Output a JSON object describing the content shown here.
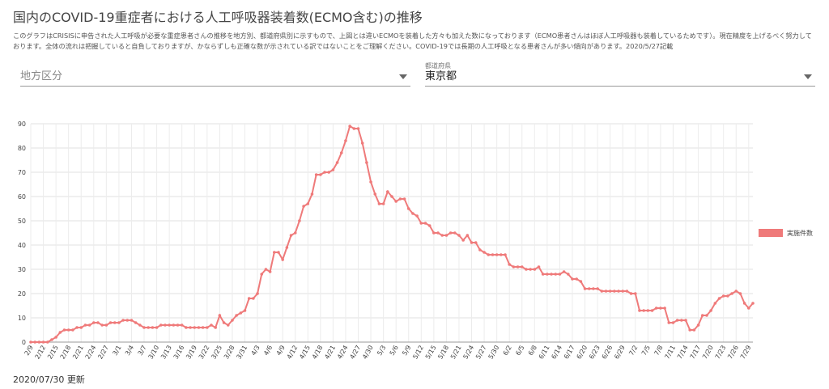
{
  "header": {
    "title": "国内のCOVID-19重症者における人工呼吸器装着数(ECMO含む)の推移",
    "description": "このグラフはCRISISに申告された人工呼吸が必要な重症患者さんの推移を地方別、都道府県別に示すもので、上図とは違いECMOを装着した方々も加えた数になっております（ECMO患者さんはほぼ人工呼吸器も装着しているためです）。現在精度を上げるべく努力しております。全体の流れは把握していると自負しておりますが、かならずしも正確な数が示されている訳ではないことをご理解ください。COVID-19では長期の人工呼吸となる患者さんが多い傾向があります。2020/5/27記載"
  },
  "filters": {
    "region_placeholder": "地方区分",
    "prefecture_label": "都道府県",
    "prefecture_value": "東京都"
  },
  "footer": {
    "updated": "2020/07/30 更新"
  },
  "chart_data": {
    "type": "line",
    "categories": [
      "2/9",
      null,
      null,
      "2/12",
      null,
      null,
      "2/15",
      null,
      null,
      "2/18",
      null,
      null,
      "2/21",
      null,
      null,
      "2/24",
      null,
      null,
      "2/27",
      null,
      null,
      "3/1",
      null,
      null,
      "3/4",
      null,
      null,
      "3/7",
      null,
      null,
      "3/10",
      null,
      null,
      "3/13",
      null,
      null,
      "3/16",
      null,
      null,
      "3/19",
      null,
      null,
      "3/22",
      null,
      null,
      "3/25",
      null,
      null,
      "3/28",
      null,
      null,
      "3/31",
      null,
      null,
      "4/3",
      null,
      null,
      "4/6",
      null,
      null,
      "4/9",
      null,
      null,
      "4/12",
      null,
      null,
      "4/15",
      null,
      null,
      "4/18",
      null,
      null,
      "4/21",
      null,
      null,
      "4/24",
      null,
      null,
      "4/27",
      null,
      null,
      "4/30",
      null,
      null,
      "5/3",
      null,
      null,
      "5/6",
      null,
      null,
      "5/9",
      null,
      null,
      "5/12",
      null,
      null,
      "5/15",
      null,
      null,
      "5/18",
      null,
      null,
      "5/21",
      null,
      null,
      "5/24",
      null,
      null,
      "5/27",
      null,
      null,
      "5/30",
      null,
      null,
      "6/2",
      null,
      null,
      "6/5",
      null,
      null,
      "6/8",
      null,
      null,
      "6/11",
      null,
      null,
      "6/14",
      null,
      null,
      "6/17",
      null,
      null,
      "6/20",
      null,
      null,
      "6/23",
      null,
      null,
      "6/26",
      null,
      null,
      "6/29",
      null,
      null,
      "7/2",
      null,
      null,
      "7/5",
      null,
      null,
      "7/8",
      null,
      null,
      "7/11",
      null,
      null,
      "7/14",
      null,
      null,
      "7/17",
      null,
      null,
      "7/20",
      null,
      null,
      "7/23",
      null,
      null,
      "7/26",
      null,
      null,
      "7/29",
      null
    ],
    "series": [
      {
        "name": "実施件数",
        "color": "#ef7a7a",
        "values": [
          0,
          0,
          0,
          0,
          0,
          1,
          2,
          4,
          5,
          5,
          5,
          6,
          6,
          7,
          7,
          8,
          8,
          7,
          7,
          8,
          8,
          8,
          9,
          9,
          9,
          8,
          7,
          6,
          6,
          6,
          6,
          7,
          7,
          7,
          7,
          7,
          7,
          6,
          6,
          6,
          6,
          6,
          6,
          7,
          6,
          11,
          8,
          7,
          9,
          11,
          12,
          13,
          18,
          18,
          20,
          28,
          30,
          29,
          37,
          37,
          34,
          39,
          44,
          45,
          50,
          56,
          57,
          61,
          69,
          69,
          70,
          70,
          71,
          74,
          78,
          83,
          89,
          88,
          88,
          82,
          74,
          66,
          61,
          57,
          57,
          62,
          60,
          58,
          59,
          59,
          55,
          53,
          52,
          49,
          49,
          48,
          45,
          45,
          44,
          44,
          45,
          45,
          44,
          42,
          44,
          41,
          41,
          38,
          37,
          36,
          36,
          36,
          36,
          36,
          32,
          31,
          31,
          31,
          30,
          30,
          30,
          31,
          28,
          28,
          28,
          28,
          28,
          29,
          28,
          26,
          26,
          25,
          22,
          22,
          22,
          22,
          21,
          21,
          21,
          21,
          21,
          21,
          21,
          20,
          20,
          13,
          13,
          13,
          13,
          14,
          14,
          14,
          8,
          8,
          9,
          9,
          9,
          5,
          5,
          7,
          11,
          11,
          13,
          16,
          18,
          19,
          19,
          20,
          21,
          20,
          16,
          14,
          16
        ]
      }
    ],
    "ylim": [
      0,
      90
    ],
    "yticks": [
      0,
      10,
      20,
      30,
      40,
      50,
      60,
      70,
      80,
      90
    ],
    "grid": true,
    "legend": "right"
  }
}
